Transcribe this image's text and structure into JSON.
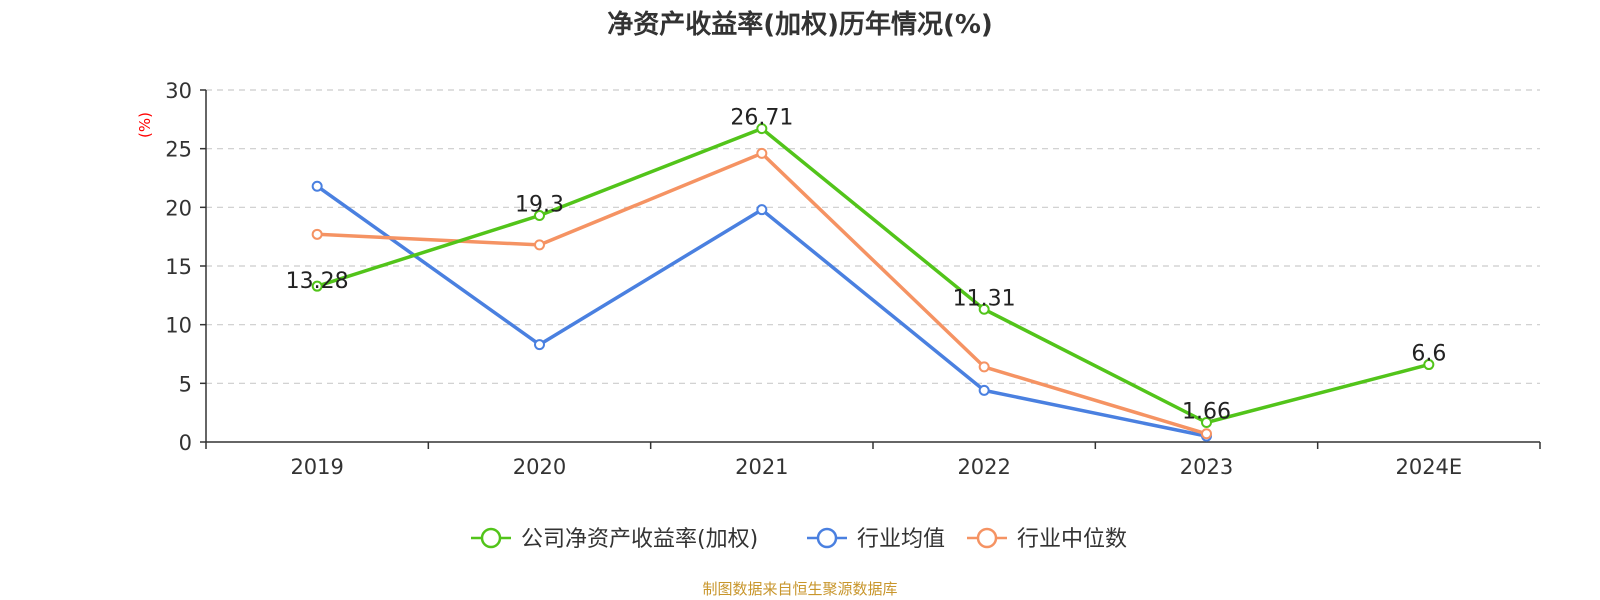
{
  "chart_data": {
    "type": "line",
    "title": "净资产收益率(加权)历年情况(%)",
    "ylabel": "(%)",
    "xlabel": "",
    "ylim": [
      0,
      30
    ],
    "yticks": [
      0,
      5,
      10,
      15,
      20,
      25,
      30
    ],
    "grid": true,
    "legend_position": "bottom",
    "categories": [
      "2019",
      "2020",
      "2021",
      "2022",
      "2023",
      "2024E"
    ],
    "series": [
      {
        "name": "公司净资产收益率(加权)",
        "color": "#52c41a",
        "values": [
          13.28,
          19.3,
          26.71,
          11.31,
          1.66,
          6.6
        ],
        "labels": [
          "13.28",
          "19.3",
          "26.71",
          "11.31",
          "1.66",
          "6.6"
        ]
      },
      {
        "name": "行业均值",
        "color": "#4a80e0",
        "values": [
          21.8,
          8.3,
          19.8,
          4.4,
          0.5,
          null
        ]
      },
      {
        "name": "行业中位数",
        "color": "#f59363",
        "values": [
          17.7,
          16.8,
          24.6,
          6.4,
          0.7,
          null
        ]
      }
    ]
  },
  "footer": "制图数据来自恒生聚源数据库",
  "colors": {
    "axis": "#333333",
    "grid": "#cccccc",
    "ylabel": "#ff0000",
    "footer": "#c8962c"
  }
}
